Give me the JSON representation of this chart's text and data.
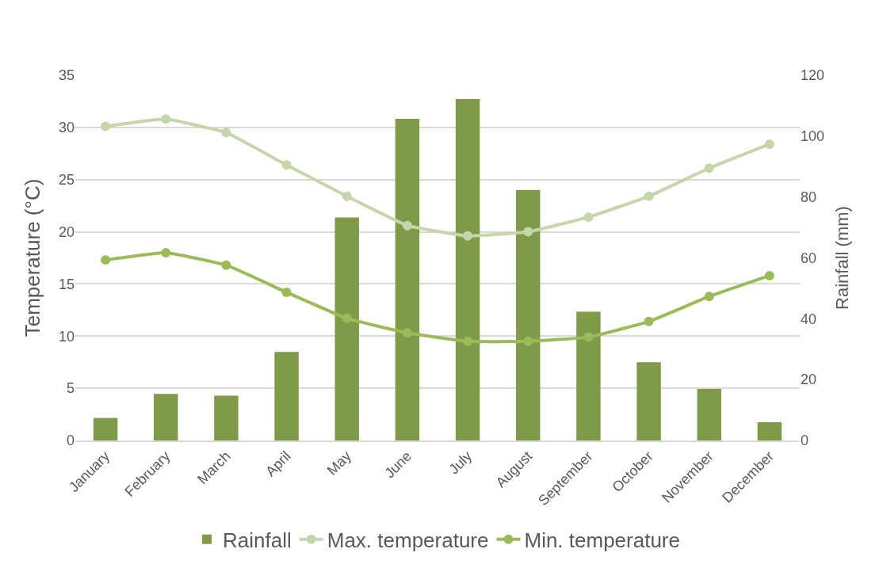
{
  "chart_data": {
    "type": "bar",
    "ylabel": "Temperature (°C)",
    "y2label": "Rainfall (mm)",
    "categories": [
      "January",
      "February",
      "March",
      "April",
      "May",
      "June",
      "July",
      "August",
      "September",
      "October",
      "November",
      "December"
    ],
    "series": [
      {
        "name": "Rainfall",
        "axis": "y2",
        "color": "#7f9a48",
        "values": [
          7.4,
          15.3,
          14.7,
          29.1,
          73.3,
          105.7,
          112.2,
          82.3,
          42.3,
          25.7,
          16.9,
          6.0
        ]
      },
      {
        "name": "Max. temperature",
        "type": "line",
        "color": "#c5d6ab",
        "values": [
          30.1,
          30.8,
          29.5,
          26.4,
          23.4,
          20.6,
          19.6,
          20.0,
          21.4,
          23.4,
          26.1,
          28.4
        ]
      },
      {
        "name": "Min. temperature",
        "type": "line",
        "color": "#9bbb59",
        "values": [
          17.3,
          18.0,
          16.8,
          14.2,
          11.7,
          10.3,
          9.5,
          9.5,
          9.9,
          11.4,
          13.8,
          15.8
        ]
      }
    ],
    "ylim": [
      0,
      35
    ],
    "yticks": [
      0,
      5,
      10,
      15,
      20,
      25,
      30,
      35
    ],
    "y2lim": [
      0,
      120
    ],
    "y2ticks": [
      0,
      20,
      40,
      60,
      80,
      100,
      120
    ],
    "grid": "y",
    "legend": "bottom",
    "marker": "circle",
    "line_style": "solid"
  }
}
